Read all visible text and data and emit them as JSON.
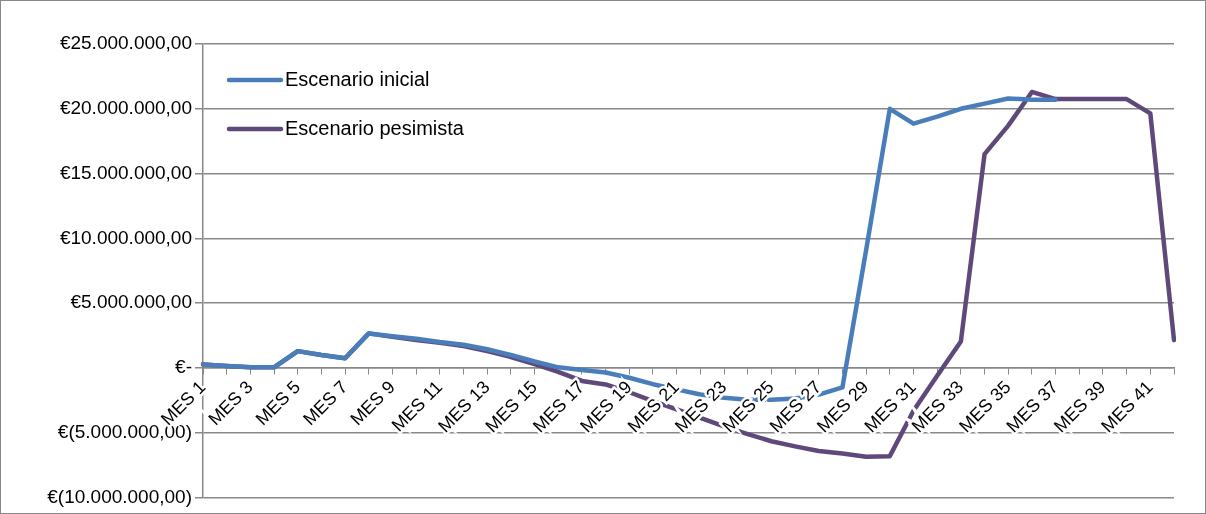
{
  "chart_data": {
    "type": "line",
    "categories": [
      "MES 1",
      null,
      "MES 3",
      null,
      "MES 5",
      null,
      "MES 7",
      null,
      "MES 9",
      null,
      "MES 11",
      null,
      "MES 13",
      null,
      "MES 15",
      null,
      "MES 17",
      null,
      "MES 19",
      null,
      "MES 21",
      null,
      "MES 23",
      null,
      "MES 25",
      null,
      "MES 27",
      null,
      "MES 29",
      null,
      "MES 31",
      null,
      "MES 33",
      null,
      "MES 35",
      null,
      "MES 37",
      null,
      "MES 39",
      null,
      "MES 41",
      null
    ],
    "series": [
      {
        "name": "Escenario inicial",
        "color": "#4a7ebb",
        "values": [
          280000,
          150000,
          50000,
          50000,
          1300000,
          1000000,
          750000,
          2670000,
          2450000,
          2250000,
          2000000,
          1800000,
          1450000,
          1000000,
          500000,
          50000,
          -150000,
          -350000,
          -750000,
          -1250000,
          -1650000,
          -2050000,
          -2300000,
          -2450000,
          -2450000,
          -2350000,
          -2050000,
          -1500000,
          9100000,
          20000000,
          18850000,
          19400000,
          20000000,
          20400000,
          20800000,
          20700000,
          20700000,
          null,
          null,
          null,
          null,
          null
        ]
      },
      {
        "name": "Escenario pesimista",
        "color": "#5f497a",
        "values": [
          280000,
          150000,
          50000,
          50000,
          1300000,
          1000000,
          750000,
          2670000,
          2400000,
          2150000,
          1950000,
          1700000,
          1300000,
          850000,
          300000,
          -300000,
          -1000000,
          -1270000,
          -1870000,
          -2550000,
          -3200000,
          -3850000,
          -4500000,
          -5100000,
          -5650000,
          -6050000,
          -6400000,
          -6600000,
          -6850000,
          -6800000,
          -3300000,
          -600000,
          2050000,
          16500000,
          18700000,
          21300000,
          20750000,
          20750000,
          20750000,
          20750000,
          19650000,
          2150000
        ]
      }
    ],
    "ylim": [
      -10000000,
      25000000
    ],
    "yticks": [
      {
        "value": -10000000,
        "label": "€(10.000.000,00)"
      },
      {
        "value": -5000000,
        "label": "€(5.000.000,00)"
      },
      {
        "value": 0,
        "label": "€-"
      },
      {
        "value": 5000000,
        "label": "€5.000.000,00"
      },
      {
        "value": 10000000,
        "label": "€10.000.000,00"
      },
      {
        "value": 15000000,
        "label": "€15.000.000,00"
      },
      {
        "value": 20000000,
        "label": "€20.000.000,00"
      },
      {
        "value": 25000000,
        "label": "€25.000.000,00"
      }
    ],
    "grid": "y",
    "legend": "top left",
    "marker": "none",
    "line_style": "solid"
  }
}
